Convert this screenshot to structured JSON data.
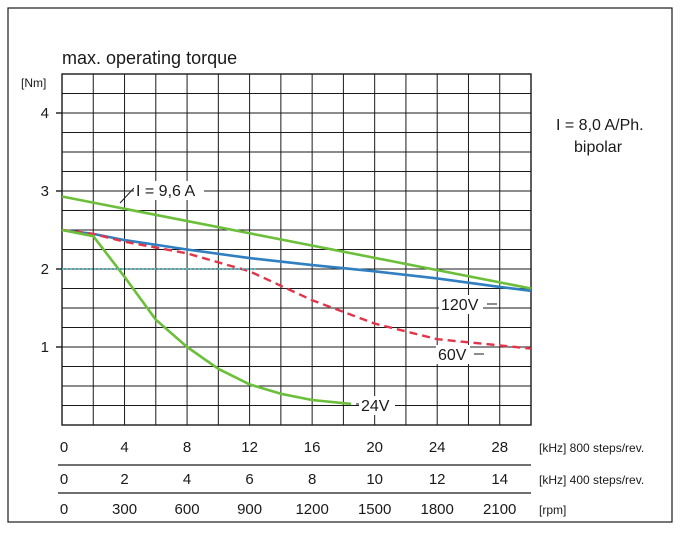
{
  "chart_data": {
    "type": "line",
    "title": "max. operating torque",
    "y_unit": "[Nm]",
    "ylim": [
      0,
      4.5
    ],
    "y_ticks": [
      1,
      2,
      3,
      4
    ],
    "xlim": [
      0,
      30
    ],
    "grid": true,
    "x_axes": [
      {
        "unit": "[kHz] 800 steps/rev.",
        "ticks": [
          "0",
          "4",
          "8",
          "12",
          "16",
          "20",
          "24",
          "28"
        ]
      },
      {
        "unit": "[kHz] 400 steps/rev.",
        "ticks": [
          "0",
          "2",
          "4",
          "6",
          "8",
          "10",
          "12",
          "14"
        ]
      },
      {
        "unit": "[rpm]",
        "ticks": [
          "0",
          "300",
          "600",
          "900",
          "1200",
          "1500",
          "1800",
          "2100"
        ]
      }
    ],
    "annotations": {
      "current": "I = 8,0 A/Ph.",
      "mode": "bipolar",
      "boost": "I = 9,6 A"
    },
    "colors": {
      "green": "#6bbf3a",
      "blue": "#2f7fc1",
      "red": "#e0354a",
      "dotted": "#49b9c4",
      "grid": "#1a1a1a"
    },
    "series": [
      {
        "name": "I = 9,6 A",
        "style": "solid",
        "color": "#6bbf3a",
        "x": [
          0,
          30
        ],
        "y": [
          2.93,
          1.75
        ]
      },
      {
        "name": "120V",
        "style": "solid",
        "color": "#2f7fc1",
        "x": [
          0,
          2,
          4,
          8,
          12,
          16,
          20,
          24,
          28,
          30
        ],
        "y": [
          2.5,
          2.45,
          2.37,
          2.25,
          2.14,
          2.05,
          1.97,
          1.88,
          1.77,
          1.72
        ]
      },
      {
        "name": "60V",
        "style": "dashed",
        "color": "#e0354a",
        "x": [
          0,
          2,
          4,
          8,
          12,
          16,
          20,
          22,
          24,
          28,
          30
        ],
        "y": [
          2.5,
          2.45,
          2.35,
          2.2,
          1.97,
          1.6,
          1.3,
          1.2,
          1.1,
          1.02,
          0.98
        ]
      },
      {
        "name": "24V",
        "style": "solid",
        "color": "#6bbf3a",
        "x": [
          0,
          2,
          4,
          6,
          8,
          10,
          12,
          14,
          16,
          18.5
        ],
        "y": [
          2.5,
          2.42,
          1.9,
          1.35,
          1.0,
          0.72,
          0.52,
          0.4,
          0.32,
          0.27
        ]
      },
      {
        "name": "",
        "style": "dotted",
        "color": "#49b9c4",
        "x": [
          0,
          12.5
        ],
        "y": [
          2.0,
          2.0
        ]
      }
    ]
  }
}
